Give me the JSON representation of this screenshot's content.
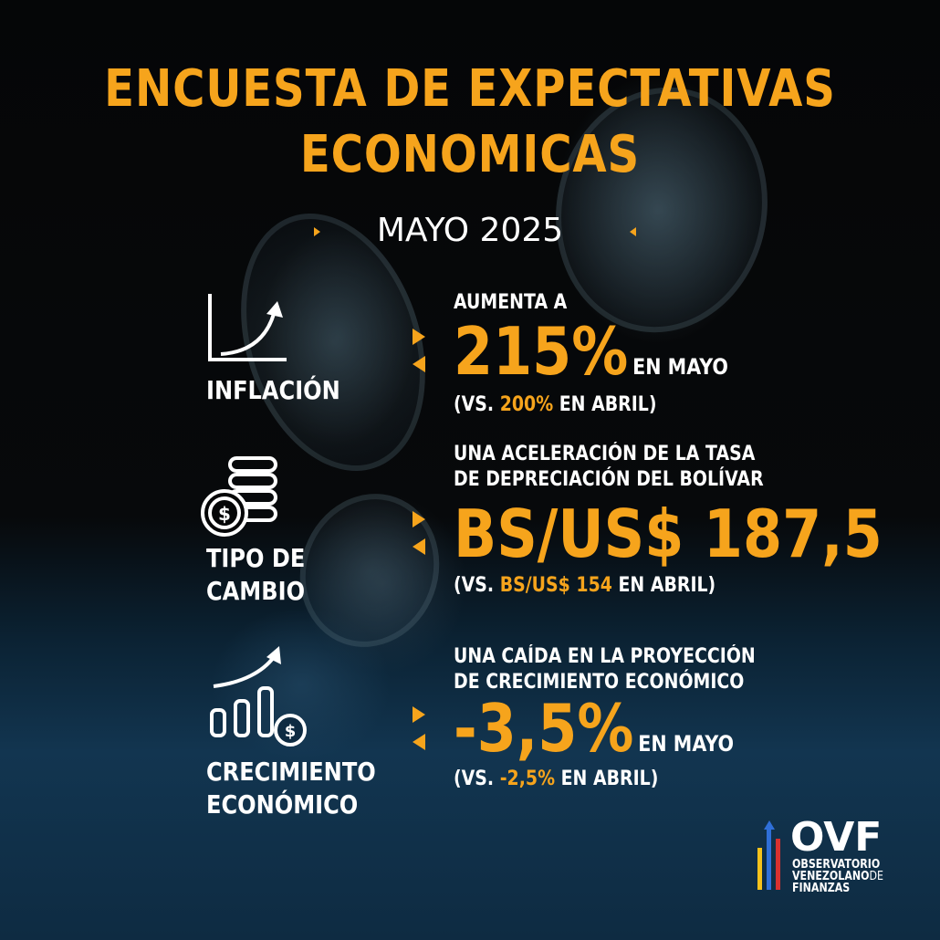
{
  "title": {
    "line1": "ENCUESTA DE EXPECTATIVAS",
    "line2": "ECONOMICAS"
  },
  "month": "MAYO 2025",
  "sections": [
    {
      "category": [
        "INFLACIÓN"
      ],
      "icon": "line-chart-arrow-icon",
      "lead": [
        "AUMENTA A"
      ],
      "value": "215%",
      "suffix": "EN MAYO",
      "comparison": {
        "prefix": "(VS. ",
        "value": "200%",
        "suffix": " EN ABRIL)"
      }
    },
    {
      "category": [
        "TIPO DE",
        "CAMBIO"
      ],
      "icon": "coin-stack-dollar-icon",
      "lead": [
        "UNA ACELERACIÓN DE LA TASA",
        "DE DEPRECIACIÓN DEL BOLÍVAR"
      ],
      "value": "BS/US$ 187,5",
      "suffix": "",
      "comparison": {
        "prefix": "(VS. ",
        "value": "BS/US$ 154",
        "suffix": " EN ABRIL)"
      }
    },
    {
      "category": [
        "CRECIMIENTO",
        "ECONÓMICO"
      ],
      "icon": "bar-growth-dollar-icon",
      "lead": [
        "UNA CAÍDA EN LA PROYECCIÓN",
        "DE CRECIMIENTO ECONÓMICO"
      ],
      "value": "-3,5%",
      "suffix": "EN MAYO",
      "comparison": {
        "prefix": "(VS. ",
        "value": "-2,5%",
        "suffix": " EN ABRIL)"
      }
    }
  ],
  "logo": {
    "acronym": "OVF",
    "line1": "OBSERVATORIO",
    "line2a": "VENEZOLANO",
    "line2b": "DE",
    "line3": "FINANZAS",
    "colors": {
      "yellow": "#f6c21c",
      "blue": "#2f6fd8",
      "red": "#d8312f"
    }
  },
  "colors": {
    "accent": "#f6a41c",
    "text": "#ffffff"
  }
}
